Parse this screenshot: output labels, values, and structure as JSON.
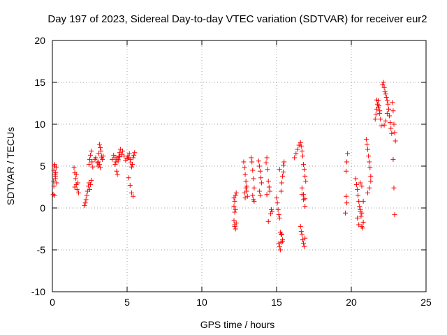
{
  "chart_data": {
    "type": "scatter",
    "title": "Day 197 of 2023, Sidereal Day-to-day VTEC variation (SDTVAR) for receiver eur2",
    "xlabel": "GPS time / hours",
    "ylabel": "SDTVAR / TECUs",
    "xlim": [
      0,
      25
    ],
    "ylim": [
      -10,
      20
    ],
    "xticks": [
      0,
      5,
      10,
      15,
      20,
      25
    ],
    "yticks": [
      -10,
      -5,
      0,
      5,
      10,
      15,
      20
    ],
    "xtick_labels": [
      "0",
      "5",
      "10",
      "15",
      "20",
      "25"
    ],
    "ytick_labels": [
      "-10",
      "-5",
      "0",
      "5",
      "10",
      "15",
      "20"
    ],
    "grid": true,
    "marker": "+",
    "marker_color": "#ff0000",
    "series": [
      {
        "name": "SDTVAR",
        "x": [
          0.05,
          0.08,
          0.1,
          0.12,
          0.15,
          0.18,
          0.2,
          0.22,
          0.25,
          0.28,
          0.1,
          0.15,
          0.2,
          1.45,
          1.5,
          1.55,
          1.6,
          1.65,
          1.7,
          1.75,
          1.5,
          1.6,
          2.15,
          2.2,
          2.25,
          2.3,
          2.35,
          2.4,
          2.45,
          2.5,
          2.55,
          2.6,
          2.45,
          2.5,
          2.55,
          2.6,
          2.65,
          2.7,
          2.85,
          2.9,
          3.0,
          3.05,
          3.1,
          3.15,
          3.2,
          3.25,
          3.3,
          3.1,
          3.2,
          3.3,
          3.35,
          3.4,
          3.15,
          4.0,
          4.1,
          4.2,
          4.25,
          4.3,
          4.35,
          4.4,
          4.45,
          4.5,
          4.55,
          4.2,
          4.3,
          4.4,
          4.5,
          4.6,
          4.7,
          4.8,
          4.9,
          5.0,
          5.05,
          5.1,
          5.15,
          5.2,
          5.25,
          5.3,
          5.35,
          5.4,
          5.45,
          5.5,
          5.1,
          5.2,
          5.3,
          5.4,
          12.15,
          12.2,
          12.25,
          12.3,
          12.2,
          12.25,
          12.15,
          12.2,
          12.25,
          12.3,
          12.2,
          12.15,
          12.8,
          12.85,
          12.9,
          12.95,
          13.0,
          12.85,
          12.9,
          12.95,
          13.0,
          13.05,
          13.3,
          13.35,
          13.4,
          13.45,
          13.5,
          13.4,
          13.45,
          13.5,
          13.8,
          13.85,
          13.9,
          13.95,
          14.0,
          13.85,
          13.9,
          14.3,
          14.35,
          14.4,
          14.45,
          14.5,
          14.55,
          14.35,
          14.45,
          14.6,
          14.65,
          14.7,
          15.0,
          15.05,
          15.1,
          15.15,
          15.2,
          15.25,
          15.3,
          15.35,
          15.4,
          15.15,
          15.2,
          15.25,
          15.3,
          15.35,
          15.4,
          15.45,
          15.2,
          15.3,
          15.4,
          15.45,
          15.5,
          16.2,
          16.3,
          16.4,
          16.5,
          16.6,
          16.65,
          16.7,
          16.75,
          16.8,
          16.85,
          16.9,
          16.95,
          16.7,
          16.8,
          16.9,
          16.6,
          16.65,
          16.7,
          16.75,
          16.8,
          16.85,
          16.9,
          16.7,
          16.8,
          16.9,
          19.6,
          19.65,
          19.7,
          19.75,
          19.7,
          19.65,
          20.3,
          20.35,
          20.4,
          20.45,
          20.5,
          20.55,
          20.6,
          20.65,
          20.7,
          20.75,
          20.8,
          20.4,
          20.5,
          20.6,
          20.7,
          20.8,
          20.6,
          20.7,
          21.0,
          21.05,
          21.1,
          21.15,
          21.2,
          21.25,
          21.3,
          21.1,
          21.2,
          21.3,
          21.6,
          21.65,
          21.7,
          21.75,
          21.8,
          21.85,
          21.9,
          21.95,
          22.0,
          21.7,
          21.8,
          21.9,
          22.1,
          22.15,
          22.2,
          22.25,
          22.3,
          22.35,
          22.4,
          22.45,
          22.5,
          22.55,
          22.6,
          22.65,
          22.7,
          22.2,
          22.3,
          22.4,
          22.5,
          22.75,
          22.8,
          22.85,
          22.9,
          22.95,
          22.8,
          22.85,
          22.9
        ],
        "y": [
          1.6,
          3.2,
          4.5,
          5.0,
          5.2,
          4.0,
          3.5,
          4.2,
          4.8,
          3.0,
          2.6,
          1.5,
          3.8,
          4.8,
          4.2,
          3.5,
          2.8,
          2.2,
          3.0,
          1.8,
          2.5,
          4.0,
          0.3,
          0.6,
          1.0,
          1.5,
          2.0,
          2.6,
          3.0,
          2.2,
          2.8,
          3.3,
          5.2,
          5.8,
          6.3,
          6.8,
          5.5,
          4.9,
          5.8,
          6.0,
          5.4,
          5.0,
          6.5,
          7.6,
          7.2,
          6.8,
          6.2,
          5.5,
          4.8,
          6.0,
          5.8,
          6.2,
          5.2,
          5.8,
          6.3,
          6.0,
          5.5,
          4.4,
          4.0,
          5.8,
          6.2,
          6.6,
          7.0,
          5.2,
          6.0,
          5.6,
          6.1,
          6.4,
          6.8,
          6.2,
          5.7,
          5.9,
          6.2,
          6.0,
          6.5,
          5.8,
          5.4,
          4.9,
          5.2,
          6.0,
          6.3,
          6.6,
          3.6,
          2.7,
          1.8,
          1.4,
          1.2,
          0.8,
          1.5,
          1.8,
          -0.5,
          -0.2,
          -1.5,
          -2.0,
          -2.5,
          -1.8,
          -2.2,
          0.2,
          5.5,
          4.8,
          4.0,
          3.2,
          2.6,
          1.8,
          1.2,
          2.4,
          2.0,
          1.4,
          6.0,
          5.5,
          4.5,
          3.5,
          2.4,
          1.5,
          1.0,
          0.8,
          5.6,
          5.0,
          4.4,
          3.6,
          3.0,
          2.0,
          1.5,
          5.4,
          6.0,
          4.6,
          3.2,
          2.5,
          2.0,
          1.6,
          -1.6,
          -0.7,
          -0.2,
          -0.4,
          1.2,
          0.6,
          -0.2,
          -0.8,
          -1.2,
          -2.9,
          -3.1,
          -3.2,
          -3.8,
          -4.2,
          -4.6,
          -5.0,
          2.0,
          3.0,
          3.8,
          4.3,
          4.6,
          -4.1,
          -4.0,
          5.1,
          5.5,
          6.0,
          6.5,
          7.0,
          7.5,
          7.8,
          7.4,
          6.8,
          6.2,
          5.2,
          4.6,
          3.8,
          3.2,
          2.4,
          1.6,
          1.1,
          -2.2,
          -2.8,
          -3.2,
          -3.8,
          -4.2,
          -4.6,
          -3.6,
          1.6,
          1.0,
          0.2,
          -0.6,
          1.4,
          0.6,
          6.5,
          5.5,
          4.4,
          3.5,
          2.8,
          2.2,
          1.5,
          0.8,
          0.2,
          -0.4,
          -1.0,
          -2.2,
          -2.4,
          -1.7,
          -1.2,
          -2.0,
          3.0,
          2.6,
          0.8,
          -0.2,
          -0.6,
          8.2,
          7.6,
          7.0,
          6.2,
          5.5,
          4.8,
          3.8,
          1.8,
          2.4,
          3.2,
          10.6,
          11.2,
          11.8,
          12.4,
          12.8,
          12.2,
          11.6,
          10.6,
          9.8,
          12.9,
          12.0,
          11.3,
          14.7,
          15.0,
          14.4,
          13.9,
          13.6,
          13.2,
          12.8,
          12.4,
          11.8,
          11.0,
          10.2,
          9.5,
          8.9,
          9.9,
          10.4,
          11.3,
          11.8,
          12.6,
          11.6,
          10.0,
          9.0,
          8.0,
          5.8,
          2.4,
          -0.8
        ]
      }
    ]
  }
}
